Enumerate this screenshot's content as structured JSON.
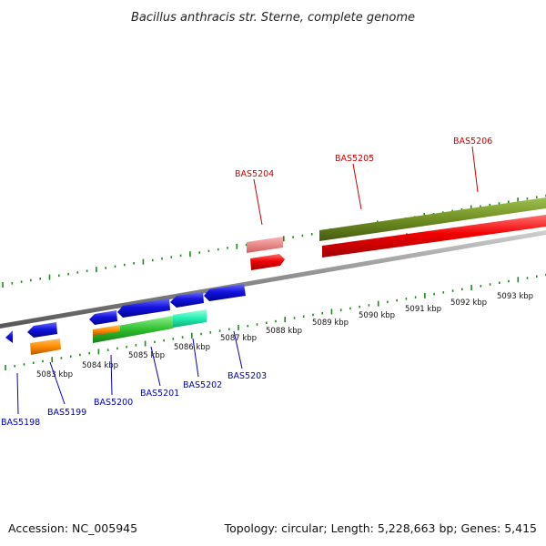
{
  "title": "Bacillus anthracis str. Sterne, complete genome",
  "footer": {
    "accession": "Accession: NC_005945",
    "summary": "Topology: circular; Length: 5,228,663 bp; Genes: 5,415"
  },
  "colors": {
    "backbone": "#8a8a8a",
    "tick": "#1a8a1a",
    "reverse_label": "#0000bb",
    "forward_label": "#cc0000"
  },
  "scale_ticks": [
    {
      "label": "5083 kbp",
      "kbp": 5083
    },
    {
      "label": "5084 kbp",
      "kbp": 5084
    },
    {
      "label": "5085 kbp",
      "kbp": 5085
    },
    {
      "label": "5086 kbp",
      "kbp": 5086
    },
    {
      "label": "5087 kbp",
      "kbp": 5087
    },
    {
      "label": "5088 kbp",
      "kbp": 5088
    },
    {
      "label": "5089 kbp",
      "kbp": 5089
    },
    {
      "label": "5090 kbp",
      "kbp": 5090
    },
    {
      "label": "5091 kbp",
      "kbp": 5091
    },
    {
      "label": "5092 kbp",
      "kbp": 5092
    },
    {
      "label": "5093 kbp",
      "kbp": 5093
    }
  ],
  "genes": [
    {
      "id": "BAS5198",
      "strand": "reverse"
    },
    {
      "id": "BAS5199",
      "strand": "reverse"
    },
    {
      "id": "BAS5200",
      "strand": "reverse"
    },
    {
      "id": "BAS5201",
      "strand": "reverse"
    },
    {
      "id": "BAS5202",
      "strand": "reverse"
    },
    {
      "id": "BAS5203",
      "strand": "reverse"
    },
    {
      "id": "BAS5204",
      "strand": "forward"
    },
    {
      "id": "BAS5205",
      "strand": "forward"
    },
    {
      "id": "BAS5206",
      "strand": "forward"
    }
  ]
}
